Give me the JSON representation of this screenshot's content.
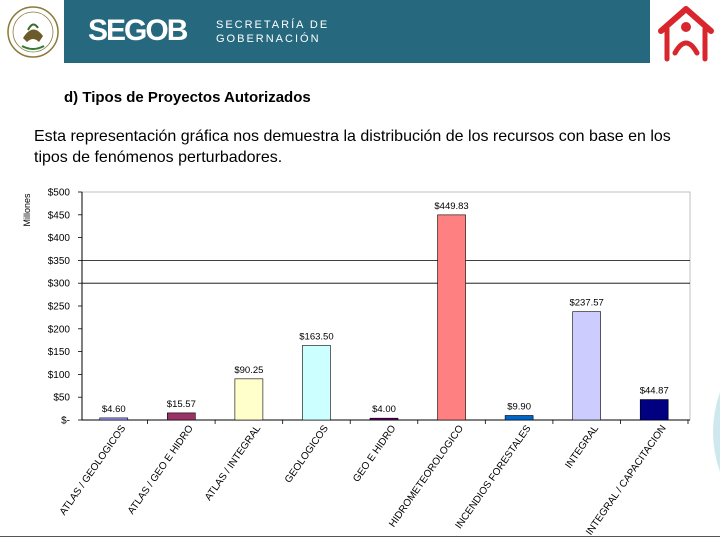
{
  "header": {
    "brand": "SEGOB",
    "agency_line1": "SECRETARÍA DE",
    "agency_line2": "GOBERNACIÓN",
    "banner_color": "#26697f",
    "seal_text": "ESTADOS UNIDOS MEXICANOS"
  },
  "page": {
    "subtitle": "d) Tipos de Proyectos Autorizados",
    "description": "Esta representación gráfica nos demuestra la distribución de los recursos con base en los tipos de fenómenos perturbadores."
  },
  "chart_data": {
    "type": "bar",
    "title": "",
    "xlabel": "",
    "ylabel": "Millones",
    "ylim": [
      0,
      500
    ],
    "yticks": [
      0,
      50,
      100,
      150,
      200,
      250,
      300,
      350,
      400,
      450,
      500
    ],
    "ytick_labels": [
      "$-",
      "$50",
      "$100",
      "$150",
      "$200",
      "$250",
      "$300",
      "$350",
      "$400",
      "$450",
      "$500"
    ],
    "gridlines_at": [
      300,
      350
    ],
    "categories": [
      "ATLAS / GEOLOGICOS",
      "ATLAS / GEO E HIDRO",
      "ATLAS / INTEGRAL",
      "GEOLOGICOS",
      "GEO E HIDRO",
      "HIDROMETEOROLOGICO",
      "INCENDIOS FORESTALES",
      "INTEGRAL",
      "INTEGRAL / CAPACITACION"
    ],
    "values": [
      4.6,
      15.57,
      90.25,
      163.5,
      4.0,
      449.83,
      9.9,
      237.57,
      44.87
    ],
    "data_labels": [
      "$4.60",
      "$15.57",
      "$90.25",
      "$163.50",
      "$4.00",
      "$449.83",
      "$9.90",
      "$237.57",
      "$44.87"
    ],
    "colors": [
      "#9999ff",
      "#993366",
      "#ffffcc",
      "#ccffff",
      "#660066",
      "#ff8080",
      "#0066cc",
      "#ccccff",
      "#000080"
    ]
  }
}
